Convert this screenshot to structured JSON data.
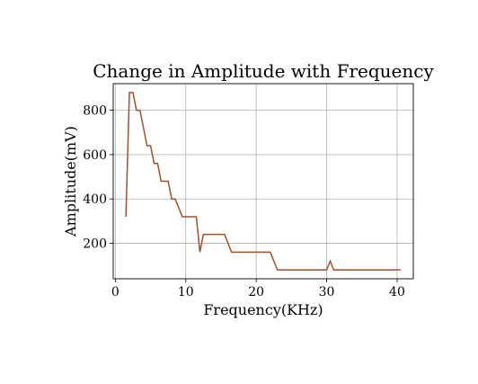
{
  "chart_data": {
    "type": "line",
    "title": "Change in Amplitude with Frequency",
    "xlabel": "Frequency(KHz)",
    "ylabel": "Amplitude(mV)",
    "xlim": [
      -0.3,
      42.3
    ],
    "ylim": [
      40,
      920
    ],
    "xticks": [
      0,
      10,
      20,
      30,
      40
    ],
    "yticks": [
      200,
      400,
      600,
      800
    ],
    "grid": true,
    "legend": "none",
    "color": "#a0522d",
    "series": [
      {
        "x": [
          1.5,
          2,
          2.5,
          3,
          3.5,
          4.5,
          5,
          5.5,
          6,
          6.5,
          7.5,
          8,
          8.5,
          9.5,
          10,
          11.5,
          12,
          12.5,
          13.5,
          15.5,
          16.5,
          22,
          23,
          30,
          30.5,
          31,
          40.5
        ],
        "y": [
          320,
          880,
          880,
          800,
          800,
          640,
          640,
          560,
          560,
          480,
          480,
          400,
          400,
          320,
          320,
          320,
          160,
          240,
          240,
          240,
          160,
          160,
          80,
          80,
          120,
          80,
          80
        ]
      }
    ]
  }
}
